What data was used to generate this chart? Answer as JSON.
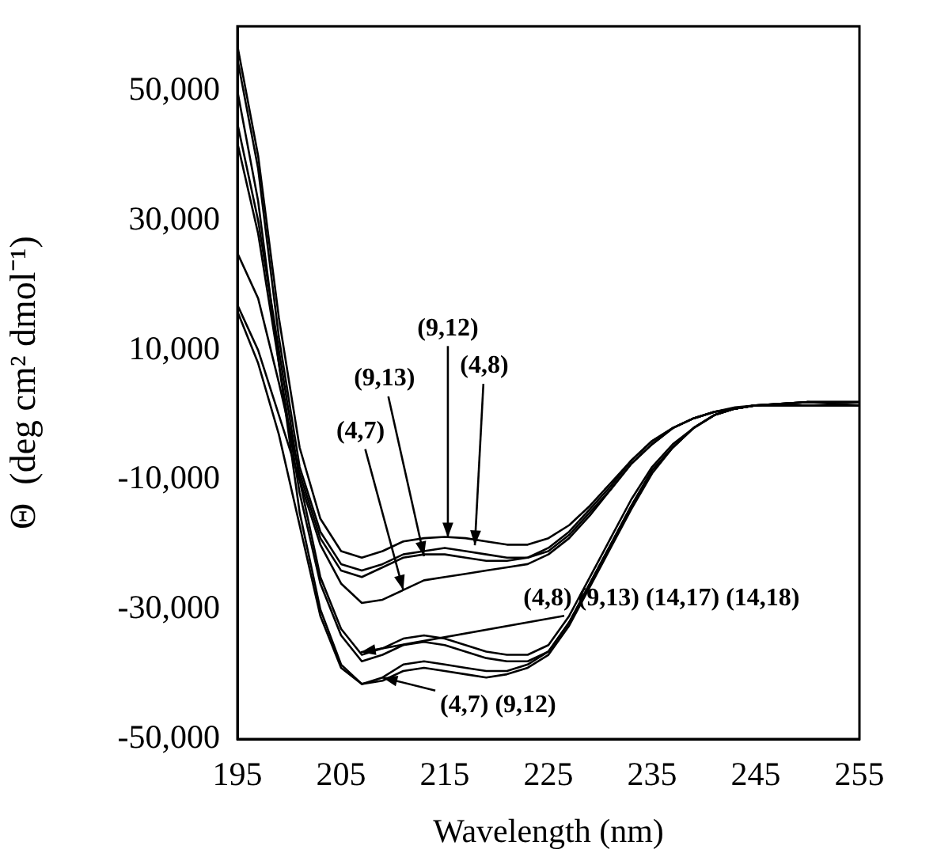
{
  "chart_data": {
    "type": "line",
    "xlabel": "Wavelength (nm)",
    "ylabel": "Θ  (deg cm² dmol⁻¹)",
    "x": [
      195,
      197,
      199,
      201,
      203,
      205,
      207,
      209,
      211,
      213,
      215,
      217,
      219,
      221,
      223,
      225,
      227,
      229,
      231,
      233,
      235,
      237,
      239,
      241,
      243,
      245,
      250,
      255
    ],
    "series": [
      {
        "color": "#000000",
        "values": [
          57000,
          40000,
          15000,
          -5000,
          -16000,
          -21000,
          -22000,
          -21000,
          -19500,
          -19000,
          -18800,
          -19000,
          -19500,
          -20000,
          -20000,
          -19000,
          -17000,
          -14000,
          -10500,
          -7000,
          -4000,
          -2000,
          -500,
          500,
          1200,
          1500,
          2000,
          2000
        ]
      },
      {
        "color": "#000000",
        "values": [
          55000,
          38000,
          12000,
          -8000,
          -18000,
          -23000,
          -24000,
          -23000,
          -21500,
          -21000,
          -20500,
          -21000,
          -21500,
          -22000,
          -22000,
          -21000,
          -18500,
          -15000,
          -11500,
          -7500,
          -4500,
          -2000,
          -500,
          500,
          1000,
          1500,
          1500,
          1500
        ]
      },
      {
        "color": "#000000",
        "values": [
          25000,
          18000,
          5000,
          -9000,
          -19000,
          -24000,
          -25000,
          -23500,
          -22000,
          -21500,
          -21500,
          -22000,
          -22500,
          -22500,
          -22000,
          -20500,
          -18000,
          -14500,
          -11000,
          -7000,
          -4000,
          -2000,
          -500,
          500,
          1000,
          1500,
          2000,
          1500
        ]
      },
      {
        "color": "#000000",
        "values": [
          17000,
          10000,
          0,
          -10000,
          -20000,
          -26000,
          -29000,
          -28500,
          -27000,
          -25500,
          -25000,
          -24500,
          -24000,
          -23500,
          -23000,
          -21500,
          -19000,
          -15500,
          -11500,
          -7500,
          -4500,
          -2000,
          -500,
          500,
          1000,
          1500,
          1500,
          1500
        ]
      },
      {
        "color": "#000000",
        "values": [
          45000,
          30000,
          10000,
          -10000,
          -25000,
          -33000,
          -37000,
          -36000,
          -34500,
          -34000,
          -34500,
          -35500,
          -36500,
          -37000,
          -37000,
          -35500,
          -31000,
          -25000,
          -19000,
          -13000,
          -8000,
          -4500,
          -2000,
          0,
          1000,
          1500,
          2000,
          2000
        ]
      },
      {
        "color": "#000000",
        "values": [
          42000,
          28000,
          8000,
          -12000,
          -26000,
          -34000,
          -38000,
          -37000,
          -35500,
          -35000,
          -35500,
          -36500,
          -37500,
          -38000,
          -38000,
          -36500,
          -32000,
          -26000,
          -20000,
          -14000,
          -8500,
          -5000,
          -2000,
          0,
          1000,
          1500,
          1500,
          1500
        ]
      },
      {
        "color": "#000000",
        "values": [
          50000,
          33000,
          8000,
          -15000,
          -30000,
          -38500,
          -41500,
          -40500,
          -38500,
          -38000,
          -38500,
          -39000,
          -39500,
          -39500,
          -38500,
          -36500,
          -32000,
          -26000,
          -20000,
          -14000,
          -8500,
          -5000,
          -2000,
          0,
          1000,
          1500,
          2000,
          2000
        ]
      },
      {
        "color": "#000000",
        "values": [
          16000,
          8000,
          -3000,
          -17000,
          -31000,
          -39000,
          -41500,
          -41000,
          -39500,
          -39000,
          -39500,
          -40000,
          -40500,
          -40000,
          -39000,
          -37000,
          -32500,
          -26500,
          -20500,
          -14500,
          -9000,
          -5000,
          -2000,
          0,
          1000,
          1500,
          1500,
          1500
        ]
      }
    ],
    "xlim": [
      195,
      255
    ],
    "xticks": [
      195,
      205,
      215,
      225,
      235,
      245,
      255
    ],
    "ylim": [
      -50000,
      60000
    ],
    "yticks": [
      {
        "value": -50000,
        "label": "-50,000"
      },
      {
        "value": -30000,
        "label": "-30,000"
      },
      {
        "value": -10000,
        "label": "-10,000"
      },
      {
        "value": 10000,
        "label": "10,000"
      },
      {
        "value": 30000,
        "label": "30,000"
      },
      {
        "value": 50000,
        "label": "50,000"
      }
    ],
    "annotations": [
      {
        "text": "(9,12)",
        "x": 215.3,
        "y": -18900
      },
      {
        "text": "(4,8)",
        "x": 217.9,
        "y": -20100
      },
      {
        "text": "(9,13)",
        "x": 213,
        "y": -21800
      },
      {
        "text": "(4,7)",
        "x": 211,
        "y": -27000
      },
      {
        "text": "(4,8) (9,13) (14,17) (14,18)",
        "x": 206.9,
        "y": -36600
      },
      {
        "text": "(4,7) (9,12)",
        "x": 209,
        "y": -40500
      }
    ],
    "grid": false,
    "legend": false,
    "marker": "none",
    "line_style": "solid"
  }
}
